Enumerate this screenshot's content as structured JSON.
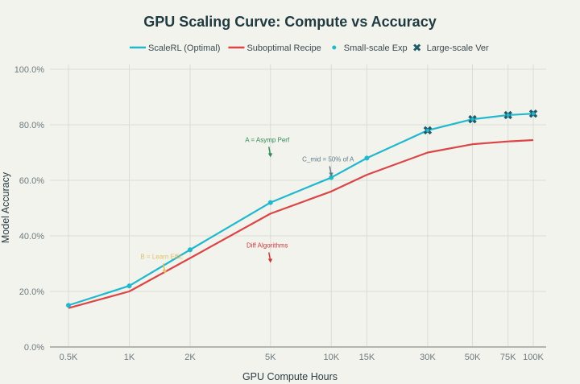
{
  "chart_data": {
    "type": "line",
    "title": "GPU Scaling Curve: Compute vs Accuracy",
    "xlabel": "GPU Compute Hours",
    "ylabel": "Model Accuracy",
    "x_scale": "log",
    "x": [
      500,
      1000,
      2000,
      5000,
      10000,
      15000,
      30000,
      50000,
      75000,
      100000
    ],
    "x_tick_labels": [
      "0.5K",
      "1K",
      "2K",
      "5K",
      "10K",
      "15K",
      "30K",
      "50K",
      "75K",
      "100K"
    ],
    "y_ticks": [
      0,
      20,
      40,
      60,
      80,
      100
    ],
    "y_tick_labels": [
      "0.0%",
      "20.0%",
      "40.0%",
      "60.0%",
      "80.0%",
      "100.0%"
    ],
    "ylim": [
      0,
      100
    ],
    "grid": true,
    "legend_position": "top",
    "series": [
      {
        "name": "ScaleRL (Optimal)",
        "color": "#1fb8cd",
        "values": [
          15,
          22,
          35,
          52,
          61,
          68,
          78,
          82,
          83.5,
          84
        ]
      },
      {
        "name": "Suboptimal Recipe",
        "color": "#db4545",
        "values": [
          14,
          20,
          32,
          48,
          56,
          62,
          70,
          73,
          74,
          74.5
        ]
      }
    ],
    "markers": [
      {
        "name": "Small-scale Exp",
        "color": "#1fb8cd",
        "x": [
          500,
          1000,
          2000,
          5000,
          10000,
          15000
        ]
      },
      {
        "name": "Large-scale Ver",
        "color": "#1f5c6b",
        "x": [
          30000,
          50000,
          75000,
          100000
        ]
      }
    ],
    "annotations": [
      {
        "text": "A = Asymp Perf",
        "color": "#2e8b57",
        "x": 5000,
        "y": 68
      },
      {
        "text": "C_mid = 50% of A",
        "color": "#5d7b8a",
        "x": 10000,
        "y": 61
      },
      {
        "text": "B = Learn Effic",
        "color": "#e0c060",
        "x": 1500,
        "y": 26
      },
      {
        "text": "Diff Algorithms",
        "color": "#c83a3a",
        "x": 5000,
        "y": 30
      }
    ]
  }
}
